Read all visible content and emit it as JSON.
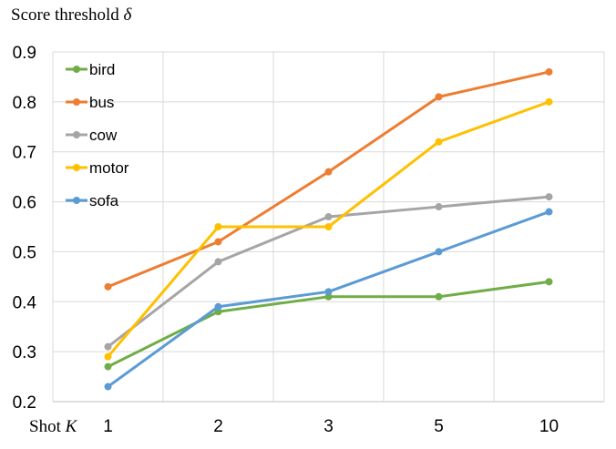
{
  "chart_data": {
    "type": "line",
    "ylabel_prefix": "Score threshold ",
    "ylabel_symbol": "δ",
    "xlabel_prefix": "Shot ",
    "xlabel_symbol": "K",
    "categories": [
      "1",
      "2",
      "3",
      "5",
      "10"
    ],
    "ylim": [
      0.2,
      0.9
    ],
    "yticks": [
      "0.2",
      "0.3",
      "0.4",
      "0.5",
      "0.6",
      "0.7",
      "0.8",
      "0.9"
    ],
    "grid": true,
    "legend_position": "top-left",
    "series": [
      {
        "name": "bird",
        "color": "#70ad47",
        "values": [
          0.27,
          0.38,
          0.41,
          0.41,
          0.44
        ]
      },
      {
        "name": "bus",
        "color": "#ed7d31",
        "values": [
          0.43,
          0.52,
          0.66,
          0.81,
          0.86
        ]
      },
      {
        "name": "cow",
        "color": "#a5a5a5",
        "values": [
          0.31,
          0.48,
          0.57,
          0.59,
          0.61
        ]
      },
      {
        "name": "motor",
        "color": "#ffc000",
        "values": [
          0.29,
          0.55,
          0.55,
          0.72,
          0.8
        ]
      },
      {
        "name": "sofa",
        "color": "#5b9bd5",
        "values": [
          0.23,
          0.39,
          0.42,
          0.5,
          0.58
        ]
      }
    ]
  }
}
